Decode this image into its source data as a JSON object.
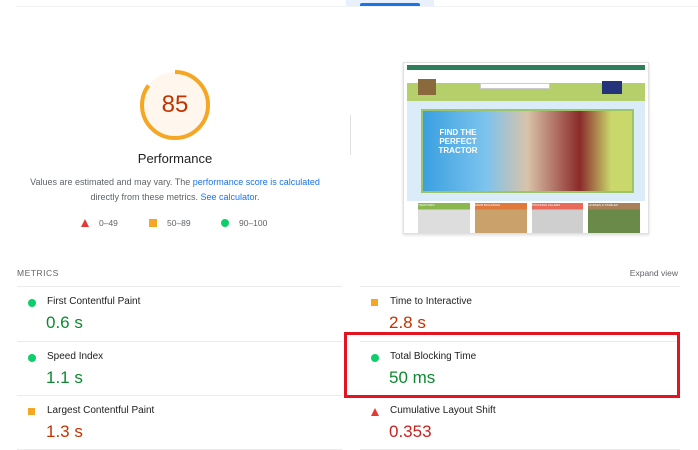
{
  "score": {
    "value": 85,
    "fraction": 0.85,
    "title": "Performance",
    "color": "#f5a623"
  },
  "description": {
    "text1": "Values are estimated and may vary. The ",
    "link1": "performance score is calculated",
    "text2": " directly from these metrics. ",
    "link2": "See calculator",
    "text3": "."
  },
  "legend": [
    {
      "icon": "triangle-red",
      "label": "0–49"
    },
    {
      "icon": "square-orange",
      "label": "50–89"
    },
    {
      "icon": "circle-green",
      "label": "90–100"
    }
  ],
  "screenshot": {
    "headline": "FIND THE PERFECT TRACTOR",
    "categories": [
      "TRACTORS",
      "FARM BUILDINGS",
      "STOCKING FILLERS",
      "HORSES & STABLES"
    ]
  },
  "metrics": {
    "label": "METRICS",
    "expand": "Expand view",
    "items": [
      {
        "name": "First Contentful Paint",
        "value": "0.6 s",
        "rating": "good"
      },
      {
        "name": "Time to Interactive",
        "value": "2.8 s",
        "rating": "average"
      },
      {
        "name": "Speed Index",
        "value": "1.1 s",
        "rating": "good"
      },
      {
        "name": "Total Blocking Time",
        "value": "50 ms",
        "rating": "good",
        "highlighted": true
      },
      {
        "name": "Largest Contentful Paint",
        "value": "1.3 s",
        "rating": "average"
      },
      {
        "name": "Cumulative Layout Shift",
        "value": "0.353",
        "rating": "poor"
      }
    ]
  },
  "colors": {
    "good": "#0cce6b",
    "average": "#f5a623",
    "poor": "#e53935",
    "highlight": "#e3141f",
    "link": "#1a73e8"
  }
}
